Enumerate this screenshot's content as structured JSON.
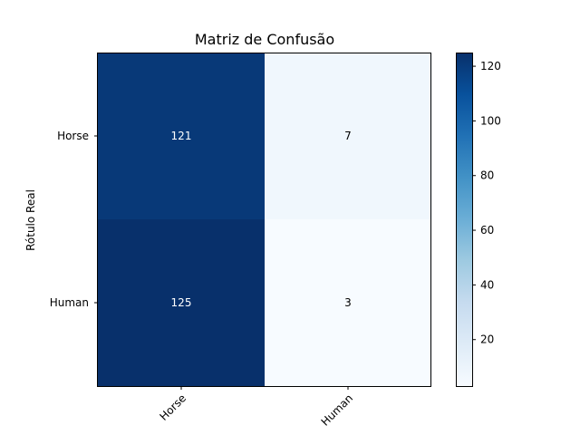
{
  "chart_data": {
    "type": "heatmap",
    "title": "Matriz de Confusão",
    "ylabel": "Rótulo Real",
    "xlabel": "",
    "x_categories": [
      "Horse",
      "Human"
    ],
    "y_categories": [
      "Horse",
      "Human"
    ],
    "values": [
      [
        121,
        7
      ],
      [
        125,
        3
      ]
    ],
    "colormap": "Blues",
    "colorbar": {
      "min": 3,
      "max": 125,
      "ticks": [
        20,
        40,
        60,
        80,
        100,
        120
      ]
    },
    "x_tick_rotation_deg": 45,
    "grid": false
  }
}
